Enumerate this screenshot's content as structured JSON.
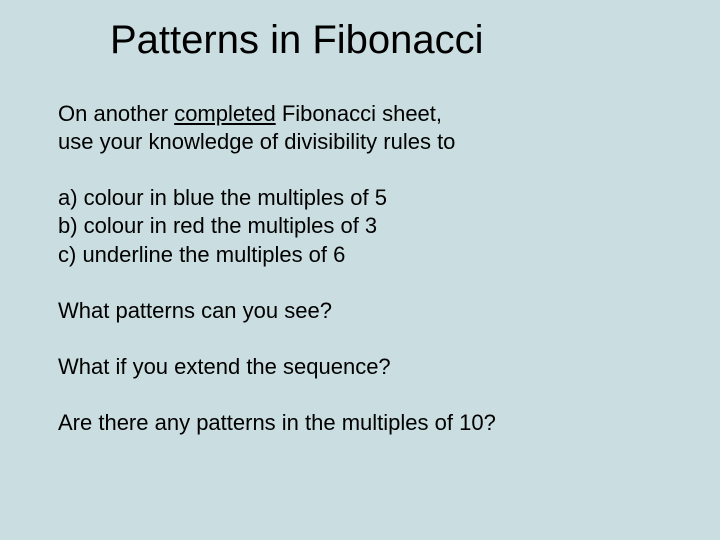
{
  "slide": {
    "background_color": "#cadde0",
    "text_color": "#000000",
    "title_fontsize": 40,
    "body_fontsize": 22,
    "font_family": "Arial"
  },
  "title": "Patterns in Fibonacci",
  "intro_line1_pre": "On another ",
  "intro_line1_underlined": "completed",
  "intro_line1_post": " Fibonacci sheet,",
  "intro_line2": "use your knowledge of divisibility rules to",
  "item_a": "a) colour in blue the multiples of 5",
  "item_b": "b) colour in red the multiples of 3",
  "item_c": "c) underline the multiples of 6",
  "q1": "What patterns can you see?",
  "q2": "What if you extend the sequence?",
  "q3": "Are there any patterns in the multiples of 10?"
}
